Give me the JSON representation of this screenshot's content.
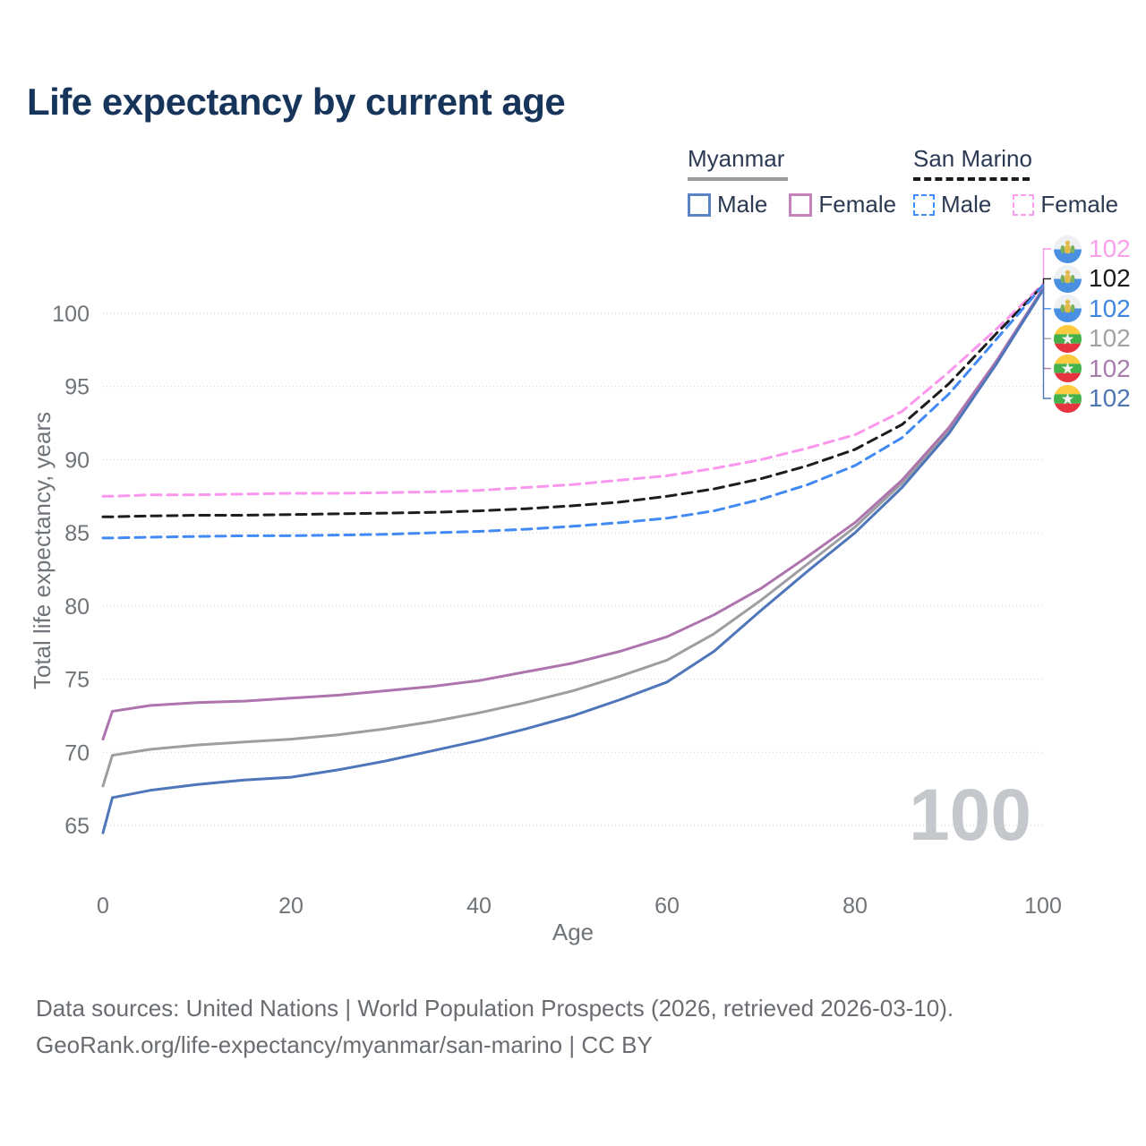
{
  "title": "Life expectancy by current age",
  "legend": {
    "groups": [
      {
        "name": "Myanmar",
        "line_style": "solid",
        "underline_color": "#9b9b9b",
        "items": [
          {
            "label": "Male",
            "color": "#5b84c4"
          },
          {
            "label": "Female",
            "color": "#c583bb"
          }
        ]
      },
      {
        "name": "San Marino",
        "line_style": "dashed",
        "underline_color": "#1a1a1a",
        "items": [
          {
            "label": "Male",
            "color": "#3f8efc"
          },
          {
            "label": "Female",
            "color": "#fa9cf1"
          }
        ]
      }
    ]
  },
  "chart_data": {
    "type": "line",
    "title": "Life expectancy by current age",
    "xlabel": "Age",
    "ylabel": "Total life expectancy, years",
    "xlim": [
      0,
      100
    ],
    "ylim": [
      63.5,
      103
    ],
    "x_ticks": [
      0,
      20,
      40,
      60,
      80,
      100
    ],
    "y_ticks": [
      65,
      70,
      75,
      80,
      85,
      90,
      95,
      100
    ],
    "grid": "horizontal-dotted",
    "legend_position": "top-right",
    "watermark": "100",
    "x": [
      0,
      1,
      5,
      10,
      15,
      20,
      25,
      30,
      35,
      40,
      45,
      50,
      55,
      60,
      65,
      70,
      75,
      80,
      85,
      90,
      95,
      100
    ],
    "series": [
      {
        "id": "san-marino-female",
        "name": "San Marino Female",
        "country": "San Marino",
        "sex": "Female",
        "color": "#fa96ee",
        "label_color": "#f8a0ec",
        "dashed": true,
        "flag": "san-marino",
        "end_label": "102",
        "values": [
          87.5,
          87.5,
          87.6,
          87.6,
          87.65,
          87.7,
          87.7,
          87.75,
          87.8,
          87.9,
          88.1,
          88.3,
          88.6,
          88.9,
          89.4,
          90.0,
          90.8,
          91.7,
          93.3,
          96.0,
          98.9,
          102.0
        ]
      },
      {
        "id": "san-marino-total",
        "name": "San Marino Total",
        "country": "San Marino",
        "sex": "Both",
        "color": "#1d1d1d",
        "label_color": "#1a1a1a",
        "dashed": true,
        "flag": "san-marino",
        "end_label": "102",
        "values": [
          86.1,
          86.1,
          86.15,
          86.2,
          86.2,
          86.25,
          86.3,
          86.35,
          86.4,
          86.5,
          86.65,
          86.85,
          87.1,
          87.5,
          88.0,
          88.7,
          89.6,
          90.7,
          92.4,
          95.2,
          98.6,
          101.9
        ]
      },
      {
        "id": "san-marino-male",
        "name": "San Marino Male",
        "country": "San Marino",
        "sex": "Male",
        "color": "#418af5",
        "label_color": "#3e86e0",
        "dashed": true,
        "flag": "san-marino",
        "end_label": "102",
        "values": [
          84.65,
          84.65,
          84.7,
          84.75,
          84.8,
          84.8,
          84.85,
          84.9,
          85.0,
          85.1,
          85.25,
          85.45,
          85.7,
          86.0,
          86.5,
          87.3,
          88.3,
          89.6,
          91.5,
          94.5,
          98.2,
          101.9
        ]
      },
      {
        "id": "myanmar-total",
        "name": "Myanmar Total",
        "country": "Myanmar",
        "sex": "Both",
        "color": "#9e9ea2",
        "label_color": "#a3a3a3",
        "dashed": false,
        "flag": "myanmar",
        "end_label": "102",
        "values": [
          67.7,
          69.8,
          70.2,
          70.5,
          70.7,
          70.9,
          71.2,
          71.6,
          72.1,
          72.7,
          73.4,
          74.2,
          75.2,
          76.3,
          78.1,
          80.4,
          82.9,
          85.4,
          88.4,
          92.0,
          96.6,
          101.7
        ]
      },
      {
        "id": "myanmar-female",
        "name": "Myanmar Female",
        "country": "Myanmar",
        "sex": "Female",
        "color": "#ad74ad",
        "label_color": "#a87cad",
        "dashed": false,
        "flag": "myanmar",
        "end_label": "102",
        "values": [
          70.9,
          72.8,
          73.2,
          73.4,
          73.5,
          73.7,
          73.9,
          74.2,
          74.5,
          74.9,
          75.5,
          76.1,
          76.9,
          77.9,
          79.4,
          81.2,
          83.4,
          85.7,
          88.6,
          92.2,
          96.7,
          101.7
        ]
      },
      {
        "id": "myanmar-male",
        "name": "Myanmar Male",
        "country": "Myanmar",
        "sex": "Male",
        "color": "#4f76ba",
        "label_color": "#4d76b3",
        "dashed": false,
        "flag": "myanmar",
        "end_label": "102",
        "values": [
          64.5,
          66.9,
          67.4,
          67.8,
          68.1,
          68.3,
          68.8,
          69.4,
          70.1,
          70.8,
          71.6,
          72.5,
          73.6,
          74.8,
          76.9,
          79.7,
          82.4,
          85.0,
          88.1,
          91.8,
          96.5,
          101.6
        ]
      }
    ]
  },
  "footer": {
    "line1": "Data sources: United Nations | World Population Prospects (2026, retrieved 2026-03-10).",
    "line2": "GeoRank.org/life-expectancy/myanmar/san-marino | CC BY"
  }
}
